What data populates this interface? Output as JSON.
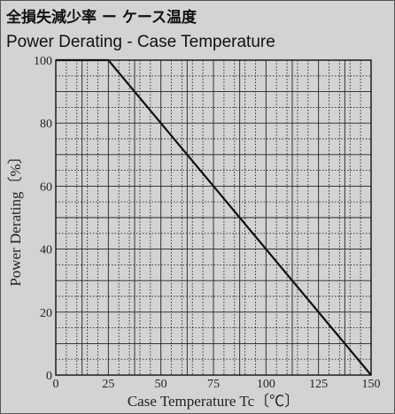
{
  "header": {
    "title_jp": "全損失減少率 ー ケース温度",
    "title_en": "Power Derating - Case Temperature"
  },
  "chart_data": {
    "type": "line",
    "title": "Power Derating - Case Temperature",
    "xlabel": "Case Temperature  Tc〔℃〕",
    "ylabel": "Power Derating〔%〕",
    "xlim": [
      0,
      150
    ],
    "ylim": [
      0,
      100
    ],
    "x_ticks": [
      0,
      25,
      50,
      75,
      100,
      125,
      150
    ],
    "y_ticks": [
      0,
      20,
      40,
      60,
      80,
      100
    ],
    "grid": true,
    "series": [
      {
        "x": [
          0,
          25,
          150
        ],
        "y": [
          100,
          100,
          0
        ]
      }
    ],
    "colors": {
      "line": "#111111",
      "background": "#d3d3d3",
      "grid": "#222222"
    }
  }
}
